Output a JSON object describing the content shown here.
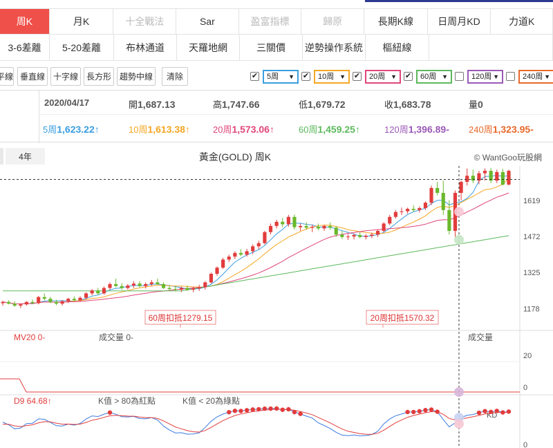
{
  "tabs_row1": [
    {
      "label": "周K",
      "active": true,
      "disabled": false
    },
    {
      "label": "月K",
      "active": false,
      "disabled": false
    },
    {
      "label": "十全戰法",
      "active": false,
      "disabled": true
    },
    {
      "label": "Sar",
      "active": false,
      "disabled": false
    },
    {
      "label": "盈富指標",
      "active": false,
      "disabled": true
    },
    {
      "label": "歸原",
      "active": false,
      "disabled": true
    },
    {
      "label": "長期K線",
      "active": false,
      "disabled": false
    },
    {
      "label": "日周月KD",
      "active": false,
      "disabled": false
    },
    {
      "label": "力道K",
      "active": false,
      "disabled": false
    }
  ],
  "tabs_row2": [
    {
      "label": "3-6差離"
    },
    {
      "label": "5-20差離"
    },
    {
      "label": "布林通道"
    },
    {
      "label": "天羅地網"
    },
    {
      "label": "三關價"
    },
    {
      "label": "逆勢操作系統"
    },
    {
      "label": "樞紐線"
    }
  ],
  "tools": {
    "horizontal": "平線",
    "vertical": "垂直線",
    "crosshair": "十字線",
    "rectangle": "長方形",
    "trend": "趨勢中線",
    "clear": "清除"
  },
  "ma_selectors": [
    {
      "label": "5周",
      "checked": true,
      "color": "#3a9ee0"
    },
    {
      "label": "10周",
      "checked": true,
      "color": "#f5a623"
    },
    {
      "label": "20周",
      "checked": true,
      "color": "#e0457b"
    },
    {
      "label": "60周",
      "checked": true,
      "color": "#5cb85c"
    },
    {
      "label": "120周",
      "checked": false,
      "color": "#9b59b6"
    },
    {
      "label": "240周",
      "checked": false,
      "color": "#e8672a"
    }
  ],
  "info": {
    "date": "2020/04/17",
    "open_label": "開",
    "open": "1,687.13",
    "high_label": "高",
    "high": "1,747.66",
    "low_label": "低",
    "low": "1,679.72",
    "close_label": "收",
    "close": "1,683.78",
    "volume_label": "量",
    "volume": "0",
    "ma5_label": "5周",
    "ma5": "1,623.22↑",
    "ma10_label": "10周",
    "ma10": "1,613.38↑",
    "ma20_label": "20周",
    "ma20": "1,573.06↑",
    "ma60_label": "60周",
    "ma60": "1,459.25↑",
    "ma120_label": "120周",
    "ma120": "1,396.89-",
    "ma240_label": "240周",
    "ma240": "1,323.95-"
  },
  "chart_header": {
    "period_tab": "4年",
    "title": "黃金(GOLD) 周K",
    "source": "© WantGoo玩股網"
  },
  "chart_data": {
    "type": "candlestick",
    "title": "黃金(GOLD) 周K",
    "y_ticks": [
      1619,
      1472,
      1325,
      1178
    ],
    "price_range": [
      1100,
      1760
    ],
    "annotations": [
      {
        "text": "60周扣抵1279.15"
      },
      {
        "text": "20周扣抵1570.32"
      }
    ],
    "candles": [
      [
        1200,
        1210,
        1190,
        1205
      ],
      [
        1205,
        1212,
        1195,
        1198
      ],
      [
        1198,
        1208,
        1185,
        1190
      ],
      [
        1190,
        1200,
        1180,
        1195
      ],
      [
        1195,
        1208,
        1190,
        1205
      ],
      [
        1205,
        1215,
        1198,
        1200
      ],
      [
        1200,
        1230,
        1195,
        1225
      ],
      [
        1225,
        1240,
        1212,
        1218
      ],
      [
        1218,
        1226,
        1200,
        1205
      ],
      [
        1205,
        1214,
        1192,
        1198
      ],
      [
        1198,
        1212,
        1190,
        1208
      ],
      [
        1208,
        1222,
        1200,
        1218
      ],
      [
        1218,
        1228,
        1208,
        1212
      ],
      [
        1212,
        1228,
        1205,
        1222
      ],
      [
        1222,
        1245,
        1215,
        1240
      ],
      [
        1240,
        1258,
        1232,
        1252
      ],
      [
        1252,
        1262,
        1235,
        1240
      ],
      [
        1240,
        1268,
        1235,
        1262
      ],
      [
        1262,
        1285,
        1255,
        1278
      ],
      [
        1278,
        1300,
        1265,
        1270
      ],
      [
        1270,
        1282,
        1255,
        1262
      ],
      [
        1262,
        1278,
        1255,
        1272
      ],
      [
        1272,
        1290,
        1262,
        1280
      ],
      [
        1280,
        1290,
        1265,
        1270
      ],
      [
        1270,
        1285,
        1260,
        1278
      ],
      [
        1278,
        1295,
        1270,
        1285
      ],
      [
        1285,
        1300,
        1275,
        1278
      ],
      [
        1278,
        1285,
        1258,
        1262
      ],
      [
        1262,
        1272,
        1250,
        1258
      ],
      [
        1258,
        1270,
        1248,
        1255
      ],
      [
        1255,
        1268,
        1245,
        1262
      ],
      [
        1262,
        1272,
        1250,
        1255
      ],
      [
        1255,
        1268,
        1245,
        1260
      ],
      [
        1260,
        1275,
        1250,
        1265
      ],
      [
        1265,
        1290,
        1255,
        1285
      ],
      [
        1285,
        1325,
        1280,
        1320
      ],
      [
        1320,
        1350,
        1312,
        1345
      ],
      [
        1345,
        1385,
        1340,
        1378
      ],
      [
        1378,
        1398,
        1368,
        1390
      ],
      [
        1390,
        1412,
        1380,
        1405
      ],
      [
        1405,
        1420,
        1392,
        1398
      ],
      [
        1398,
        1422,
        1390,
        1412
      ],
      [
        1412,
        1440,
        1400,
        1432
      ],
      [
        1432,
        1455,
        1420,
        1445
      ],
      [
        1445,
        1495,
        1440,
        1490
      ],
      [
        1490,
        1525,
        1480,
        1515
      ],
      [
        1515,
        1540,
        1505,
        1532
      ],
      [
        1532,
        1548,
        1510,
        1522
      ],
      [
        1522,
        1560,
        1512,
        1552
      ],
      [
        1552,
        1562,
        1500,
        1510
      ],
      [
        1510,
        1525,
        1495,
        1515
      ],
      [
        1515,
        1530,
        1500,
        1508
      ],
      [
        1508,
        1520,
        1490,
        1512
      ],
      [
        1512,
        1525,
        1498,
        1505
      ],
      [
        1505,
        1520,
        1495,
        1515
      ],
      [
        1515,
        1530,
        1500,
        1508
      ],
      [
        1508,
        1515,
        1470,
        1480
      ],
      [
        1480,
        1495,
        1462,
        1470
      ],
      [
        1470,
        1482,
        1458,
        1472
      ],
      [
        1472,
        1485,
        1460,
        1478
      ],
      [
        1478,
        1490,
        1465,
        1470
      ],
      [
        1470,
        1482,
        1460,
        1475
      ],
      [
        1475,
        1488,
        1465,
        1480
      ],
      [
        1480,
        1500,
        1470,
        1495
      ],
      [
        1495,
        1530,
        1490,
        1525
      ],
      [
        1525,
        1560,
        1518,
        1552
      ],
      [
        1552,
        1580,
        1545,
        1572
      ],
      [
        1572,
        1590,
        1560,
        1575
      ],
      [
        1575,
        1590,
        1565,
        1585
      ],
      [
        1585,
        1600,
        1572,
        1580
      ],
      [
        1580,
        1595,
        1570,
        1588
      ],
      [
        1588,
        1615,
        1580,
        1610
      ],
      [
        1610,
        1680,
        1600,
        1670
      ],
      [
        1670,
        1695,
        1640,
        1650
      ],
      [
        1650,
        1700,
        1560,
        1580
      ],
      [
        1580,
        1620,
        1480,
        1495
      ],
      [
        1495,
        1660,
        1470,
        1650
      ],
      [
        1650,
        1700,
        1620,
        1695
      ],
      [
        1695,
        1750,
        1680,
        1720
      ],
      [
        1720,
        1745,
        1690,
        1700
      ],
      [
        1700,
        1740,
        1685,
        1730
      ],
      [
        1730,
        1750,
        1700,
        1740
      ],
      [
        1740,
        1752,
        1690,
        1700
      ],
      [
        1700,
        1745,
        1690,
        1735
      ],
      [
        1735,
        1748,
        1680,
        1684
      ],
      [
        1684,
        1745,
        1680,
        1740
      ]
    ],
    "sub_panels": [
      {
        "label": "MV20",
        "value": "0-",
        "volume_label": "成交量",
        "volume_value": "0-",
        "right_label": "成交量",
        "y_ticks": [
          20,
          0
        ]
      },
      {
        "label": "D9",
        "value": "64.68↑",
        "legend_red": "K值 > 80為紅點",
        "legend_green": "K值 < 20為綠點",
        "right_label": "KD",
        "y_ticks": [
          0
        ]
      }
    ]
  }
}
